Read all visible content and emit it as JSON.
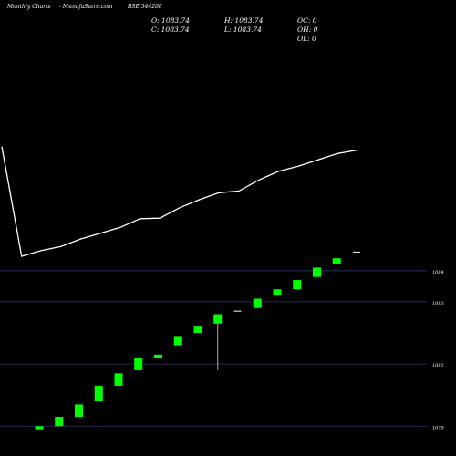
{
  "header": {
    "site": "Monthly Charts",
    "source": "- MunafaSutra.com",
    "symbol": "BSE 544208"
  },
  "ohlc": {
    "open": "O: 1083.74",
    "high": "H: 1083.74",
    "oc": "OC: 0",
    "close": "C: 1083.74",
    "low": "L: 1083.74",
    "oh": "OH: 0",
    "ol": "OL: 0"
  },
  "chart_data": {
    "type": "line+candlestick",
    "upper_line": {
      "x": [
        1,
        2,
        3,
        4,
        5,
        6,
        7,
        8,
        9,
        10,
        11,
        12,
        13,
        14,
        15,
        16,
        17,
        18,
        19
      ],
      "values": [
        1220,
        1030,
        1040,
        1047,
        1060,
        1070,
        1080,
        1095,
        1096,
        1114,
        1128,
        1140,
        1143,
        1162,
        1177,
        1186,
        1197,
        1208,
        1214
      ],
      "ylim": [
        1000,
        1300
      ]
    },
    "price_axis": {
      "ticks": [
        {
          "value": 1079,
          "label": "1079"
        },
        {
          "value": 1081,
          "label": "1081"
        },
        {
          "value": 1083,
          "label": "1083"
        },
        {
          "value": 1084,
          "label": "1084"
        }
      ],
      "ylim": [
        1078.92,
        1084.2
      ]
    },
    "candles": [
      {
        "open": 1078.9,
        "close": 1079.0,
        "high": 1079.0,
        "low": 1078.9
      },
      {
        "open": 1079.0,
        "close": 1079.3,
        "high": 1079.3,
        "low": 1079.0
      },
      {
        "open": 1079.3,
        "close": 1079.7,
        "high": 1079.7,
        "low": 1079.3
      },
      {
        "open": 1079.8,
        "close": 1080.3,
        "high": 1080.3,
        "low": 1079.8
      },
      {
        "open": 1080.3,
        "close": 1080.7,
        "high": 1080.7,
        "low": 1080.3
      },
      {
        "open": 1080.8,
        "close": 1081.2,
        "high": 1081.2,
        "low": 1080.8
      },
      {
        "open": 1081.2,
        "close": 1081.3,
        "high": 1081.3,
        "low": 1081.2
      },
      {
        "open": 1081.6,
        "close": 1081.9,
        "high": 1081.9,
        "low": 1081.6
      },
      {
        "open": 1082.0,
        "close": 1082.2,
        "high": 1082.2,
        "low": 1082.0
      },
      {
        "open": 1082.3,
        "close": 1082.6,
        "high": 1082.6,
        "low": 1080.8
      },
      {
        "open": 1082.7,
        "close": 1082.7,
        "high": 1082.7,
        "low": 1082.7
      },
      {
        "open": 1082.8,
        "close": 1083.1,
        "high": 1083.1,
        "low": 1082.8
      },
      {
        "open": 1083.2,
        "close": 1083.4,
        "high": 1083.4,
        "low": 1083.2
      },
      {
        "open": 1083.4,
        "close": 1083.7,
        "high": 1083.7,
        "low": 1083.4
      },
      {
        "open": 1083.8,
        "close": 1084.1,
        "high": 1084.1,
        "low": 1083.8
      },
      {
        "open": 1084.2,
        "close": 1084.4,
        "high": 1084.4,
        "low": 1084.2
      },
      {
        "open": 1084.6,
        "close": 1084.6,
        "high": 1084.6,
        "low": 1084.6
      }
    ],
    "colors": {
      "up": "#00ff00",
      "doji": "#ffffff",
      "line": "#ffffff",
      "grid": "#333366"
    }
  }
}
